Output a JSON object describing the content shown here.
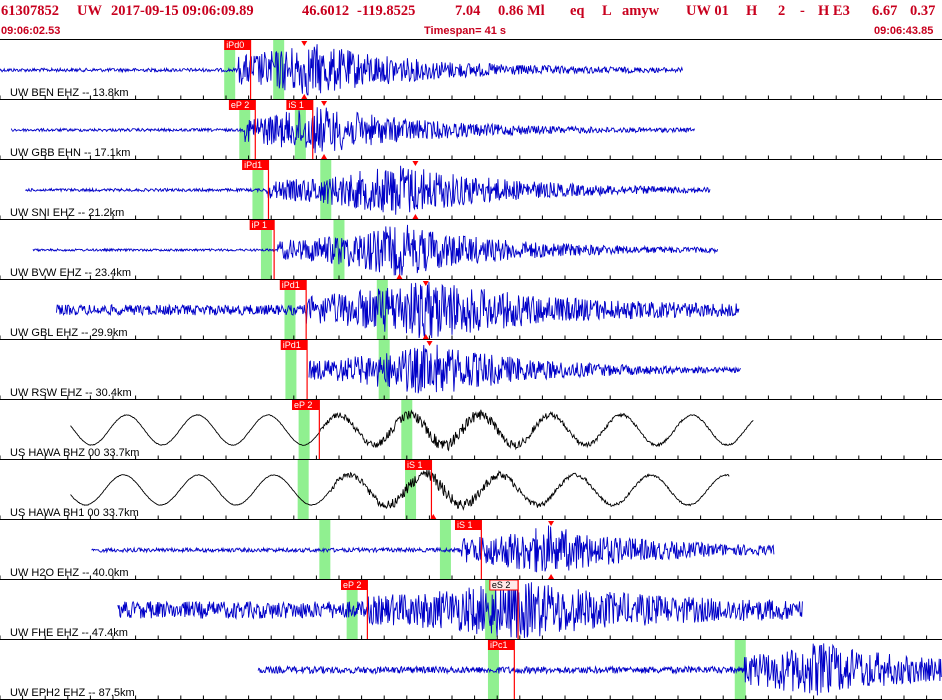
{
  "header": {
    "event_id": "61307852",
    "network": "UW",
    "origin_time": "2017-09-15 09:06:09.89",
    "lat": "46.6012",
    "lon": "-119.8525",
    "depth": "7.04",
    "magnitude": "0.86 Ml",
    "etype": "eq",
    "gtype": "L",
    "author": "amyw",
    "source": "UW 01",
    "hflag": "H",
    "quality": "2",
    "dash": "-",
    "flag2": "H E3",
    "val1": "6.67",
    "val2": "0.37",
    "start_time": "09:06:02.53",
    "timespan": "Timespan=  41 s",
    "end_time": "09:06:43.85"
  },
  "colors": {
    "header_text": "#c8001e",
    "trace_uw": "#0000c8",
    "trace_us": "#000000",
    "pick_box": "#ff0000",
    "green_window": "#90f090",
    "separator": "#000000",
    "tick": "#000000"
  },
  "traces": [
    {
      "label": "UW BEN EHZ -- 13.8km",
      "color": "trace_uw",
      "start": 0.0,
      "end": 0.725,
      "signal_start": 0.252,
      "signal_peak": 0.33,
      "noise": 0.06,
      "amp": 0.9,
      "type": "hf",
      "picks": [
        {
          "text": "iPd0",
          "x": 0.238,
          "w": 0.028,
          "dark": false
        }
      ],
      "green": [
        0.238,
        0.29
      ],
      "markers": [
        {
          "x": 0.323,
          "pos": "top"
        },
        {
          "x": 0.323,
          "pos": "bottom"
        }
      ]
    },
    {
      "label": "UW GBB EHN -- 17.1km",
      "color": "trace_uw",
      "start": 0.012,
      "end": 0.738,
      "signal_start": 0.26,
      "signal_peak": 0.34,
      "noise": 0.05,
      "amp": 0.8,
      "type": "hf",
      "picks": [
        {
          "text": "eP 2",
          "x": 0.243,
          "w": 0.028,
          "dark": false
        },
        {
          "text": "iS 1",
          "x": 0.304,
          "w": 0.028,
          "dark": false
        }
      ],
      "green": [
        0.254,
        0.313
      ],
      "markers": [
        {
          "x": 0.344,
          "pos": "top"
        },
        {
          "x": 0.344,
          "pos": "bottom"
        }
      ]
    },
    {
      "label": "UW SNI EHZ -- 21.2km",
      "color": "trace_uw",
      "start": 0.027,
      "end": 0.754,
      "signal_start": 0.283,
      "signal_peak": 0.425,
      "noise": 0.05,
      "amp": 0.9,
      "type": "hf",
      "picks": [
        {
          "text": "iPd1",
          "x": 0.257,
          "w": 0.028,
          "dark": false
        }
      ],
      "green": [
        0.268,
        0.34
      ],
      "markers": [
        {
          "x": 0.441,
          "pos": "top"
        },
        {
          "x": 0.441,
          "pos": "bottom"
        }
      ]
    },
    {
      "label": "UW BVW EHZ -- 23.4km",
      "color": "trace_uw",
      "start": 0.035,
      "end": 0.762,
      "signal_start": 0.295,
      "signal_peak": 0.425,
      "noise": 0.04,
      "amp": 0.9,
      "type": "hf",
      "picks": [
        {
          "text": "iP 1",
          "x": 0.265,
          "w": 0.026,
          "dark": false
        }
      ],
      "green": [
        0.277,
        0.354
      ],
      "markers": [
        {
          "x": 0.424,
          "pos": "bottom"
        }
      ]
    },
    {
      "label": "UW GBL EHZ -- 29.9km",
      "color": "trace_uw",
      "start": 0.06,
      "end": 0.785,
      "signal_start": 0.325,
      "signal_peak": 0.455,
      "noise": 0.18,
      "amp": 0.95,
      "type": "hf",
      "picks": [
        {
          "text": "iPd1",
          "x": 0.297,
          "w": 0.028,
          "dark": false
        }
      ],
      "green": [
        0.302,
        0.4
      ],
      "markers": [
        {
          "x": 0.452,
          "pos": "top"
        },
        {
          "x": 0.452,
          "pos": "bottom"
        }
      ]
    },
    {
      "label": "UW RSW EHZ -- 30.4km",
      "color": "trace_uw",
      "start": 0.328,
      "end": 0.787,
      "signal_start": 0.328,
      "signal_peak": 0.458,
      "noise": 0.04,
      "amp": 0.9,
      "type": "hf",
      "picks": [
        {
          "text": "iPd1",
          "x": 0.298,
          "w": 0.028,
          "dark": false
        }
      ],
      "green": [
        0.303,
        0.402
      ],
      "markers": [
        {
          "x": 0.456,
          "pos": "top"
        }
      ]
    },
    {
      "label": "US HAWA BHZ 00 33.7km",
      "color": "trace_us",
      "start": 0.075,
      "end": 0.8,
      "signal_start": 0.34,
      "signal_peak": 0.48,
      "noise": 0.03,
      "amp": 0.55,
      "type": "lf",
      "period": 0.075,
      "picks": [
        {
          "text": "eP 2",
          "x": 0.31,
          "w": 0.029,
          "dark": false
        }
      ],
      "green": [
        0.317,
        0.426
      ],
      "markers": []
    },
    {
      "label": "US HAWA BH1 00 33.7km",
      "color": "trace_us",
      "start": 0.075,
      "end": 0.775,
      "signal_start": 0.35,
      "signal_peak": 0.46,
      "noise": 0.03,
      "amp": 0.55,
      "type": "lf",
      "period": 0.08,
      "picks": [
        {
          "text": "iS 1",
          "x": 0.43,
          "w": 0.028,
          "dark": false
        }
      ],
      "green": [
        0.316,
        0.43
      ],
      "markers": [
        {
          "x": 0.46,
          "pos": "bottom"
        }
      ]
    },
    {
      "label": "UW H2O EHZ -- 40.0km",
      "color": "trace_uw",
      "start": 0.097,
      "end": 0.822,
      "signal_start": 0.49,
      "signal_peak": 0.58,
      "noise": 0.07,
      "amp": 0.8,
      "type": "hf",
      "picks": [
        {
          "text": "iS 1",
          "x": 0.483,
          "w": 0.028,
          "dark": false
        }
      ],
      "green": [
        0.339,
        0.467
      ],
      "markers": [
        {
          "x": 0.585,
          "pos": "top"
        },
        {
          "x": 0.585,
          "pos": "bottom"
        }
      ]
    },
    {
      "label": "UW FHE EHZ -- 47.4km",
      "color": "trace_uw",
      "start": 0.125,
      "end": 0.852,
      "signal_start": 0.39,
      "signal_peak": 0.55,
      "noise": 0.3,
      "amp": 0.8,
      "type": "hf",
      "picks": [
        {
          "text": "eP 2",
          "x": 0.362,
          "w": 0.028,
          "dark": false
        },
        {
          "text": "eS 2",
          "x": 0.52,
          "w": 0.03,
          "dark": true
        }
      ],
      "green": [
        0.368,
        0.515
      ],
      "markers": []
    },
    {
      "label": "UW EPH2 EHZ -- 87.5km",
      "color": "trace_uw",
      "start": 0.274,
      "end": 1.0,
      "signal_start": 0.79,
      "signal_peak": 0.87,
      "noise": 0.12,
      "amp": 0.85,
      "type": "hf",
      "picks": [
        {
          "text": "iPc1",
          "x": 0.518,
          "w": 0.028,
          "dark": false
        }
      ],
      "green": [
        0.518,
        0.78
      ],
      "markers": []
    }
  ]
}
